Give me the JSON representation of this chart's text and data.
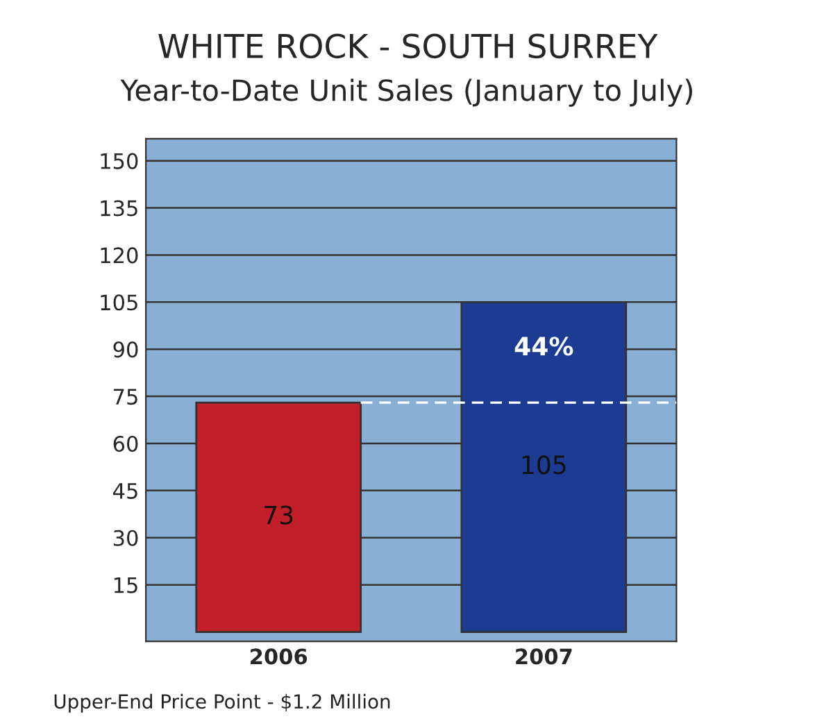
{
  "chart_data": {
    "type": "bar",
    "title": "WHITE ROCK - SOUTH SURREY",
    "subtitle": "Year-to-Date Unit Sales (January to July)",
    "categories": [
      "2006",
      "2007"
    ],
    "values": [
      73,
      105
    ],
    "colors": [
      "#c1202a",
      "#1c3c93"
    ],
    "ylim": [
      -3,
      157
    ],
    "yticks": [
      15,
      30,
      45,
      60,
      75,
      90,
      105,
      120,
      135,
      150
    ],
    "grid": "y",
    "data_labels": true,
    "ref_lines": [
      {
        "axis": "y",
        "value": 73,
        "color": "#ffffff",
        "line_style": "dashed"
      }
    ],
    "annotations": [
      "44%",
      "Upper-End Price Point - $1.2 Million"
    ]
  }
}
